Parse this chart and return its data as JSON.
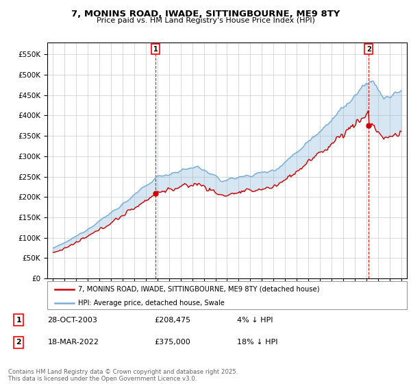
{
  "title": "7, MONINS ROAD, IWADE, SITTINGBOURNE, ME9 8TY",
  "subtitle": "Price paid vs. HM Land Registry's House Price Index (HPI)",
  "ytick_values": [
    0,
    50000,
    100000,
    150000,
    200000,
    250000,
    300000,
    350000,
    400000,
    450000,
    500000,
    550000
  ],
  "ylim": [
    0,
    580000
  ],
  "xlim_start": 1994.5,
  "xlim_end": 2025.5,
  "hpi_color": "#7aadd4",
  "hpi_fill_color": "#ddeeff",
  "price_color": "#cc0000",
  "sale1_year": 2003.83,
  "sale1_price": 208475,
  "sale2_year": 2022.21,
  "sale2_price": 375000,
  "sale1_date": "28-OCT-2003",
  "sale2_date": "18-MAR-2022",
  "legend_label_price": "7, MONINS ROAD, IWADE, SITTINGBOURNE, ME9 8TY (detached house)",
  "legend_label_hpi": "HPI: Average price, detached house, Swale",
  "footer": "Contains HM Land Registry data © Crown copyright and database right 2025.\nThis data is licensed under the Open Government Licence v3.0.",
  "background_color": "#ffffff",
  "grid_color": "#cccccc"
}
